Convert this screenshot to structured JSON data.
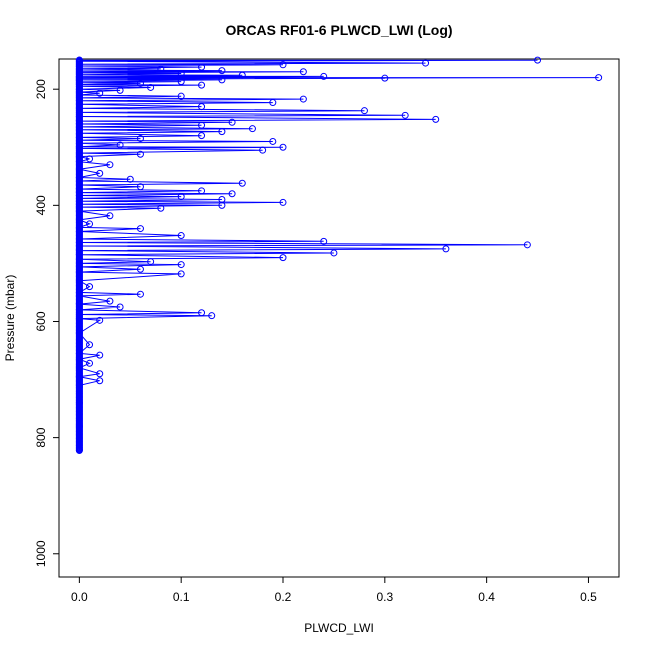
{
  "chart_data": {
    "type": "scatter",
    "title": "ORCAS RF01-6 PLWCD_LWI (Log)",
    "xlabel": "PLWCD_LWI",
    "ylabel": "Pressure (mbar)",
    "xlim": [
      -0.02,
      0.53
    ],
    "ylim": [
      1040,
      148
    ],
    "y_reversed": true,
    "x_ticks": [
      0.0,
      0.1,
      0.2,
      0.3,
      0.4,
      0.5
    ],
    "x_tick_labels": [
      "0.0",
      "0.1",
      "0.2",
      "0.3",
      "0.4",
      "0.5"
    ],
    "y_ticks": [
      200,
      400,
      600,
      800,
      1000
    ],
    "y_tick_labels": [
      "200",
      "400",
      "600",
      "800",
      "1000"
    ],
    "grid": false,
    "legend": "none",
    "color": "#0000ff",
    "marker": "open-circle",
    "series_mode": "lines+markers",
    "zero_band": {
      "x": 0.0,
      "y_from": 150,
      "y_to": 822
    },
    "points": [
      [
        0.0,
        150
      ],
      [
        0.45,
        150
      ],
      [
        0.0,
        152
      ],
      [
        0.34,
        155
      ],
      [
        0.0,
        157
      ],
      [
        0.2,
        158
      ],
      [
        0.0,
        160
      ],
      [
        0.12,
        162
      ],
      [
        0.0,
        164
      ],
      [
        0.08,
        165
      ],
      [
        0.0,
        167
      ],
      [
        0.14,
        168
      ],
      [
        0.0,
        170
      ],
      [
        0.22,
        170
      ],
      [
        0.0,
        172
      ],
      [
        0.1,
        173
      ],
      [
        0.0,
        175
      ],
      [
        0.16,
        176
      ],
      [
        0.0,
        178
      ],
      [
        0.24,
        178
      ],
      [
        0.0,
        180
      ],
      [
        0.51,
        180
      ],
      [
        0.0,
        182
      ],
      [
        0.3,
        181
      ],
      [
        0.0,
        183
      ],
      [
        0.14,
        184
      ],
      [
        0.0,
        186
      ],
      [
        0.1,
        187
      ],
      [
        0.0,
        189
      ],
      [
        0.06,
        190
      ],
      [
        0.0,
        192
      ],
      [
        0.12,
        193
      ],
      [
        0.0,
        195
      ],
      [
        0.07,
        197
      ],
      [
        0.0,
        200
      ],
      [
        0.04,
        202
      ],
      [
        0.0,
        205
      ],
      [
        0.02,
        207
      ],
      [
        0.0,
        210
      ],
      [
        0.1,
        212
      ],
      [
        0.0,
        215
      ],
      [
        0.22,
        217
      ],
      [
        0.0,
        220
      ],
      [
        0.19,
        223
      ],
      [
        0.0,
        226
      ],
      [
        0.12,
        230
      ],
      [
        0.0,
        233
      ],
      [
        0.28,
        237
      ],
      [
        0.0,
        240
      ],
      [
        0.32,
        245
      ],
      [
        0.0,
        247
      ],
      [
        0.35,
        252
      ],
      [
        0.0,
        255
      ],
      [
        0.15,
        257
      ],
      [
        0.0,
        260
      ],
      [
        0.12,
        262
      ],
      [
        0.0,
        265
      ],
      [
        0.17,
        268
      ],
      [
        0.0,
        270
      ],
      [
        0.14,
        273
      ],
      [
        0.0,
        276
      ],
      [
        0.12,
        280
      ],
      [
        0.0,
        283
      ],
      [
        0.06,
        285
      ],
      [
        0.0,
        288
      ],
      [
        0.19,
        290
      ],
      [
        0.0,
        293
      ],
      [
        0.04,
        296
      ],
      [
        0.0,
        299
      ],
      [
        0.2,
        300
      ],
      [
        0.0,
        302
      ],
      [
        0.18,
        305
      ],
      [
        0.0,
        310
      ],
      [
        0.06,
        312
      ],
      [
        0.0,
        316
      ],
      [
        0.01,
        320
      ],
      [
        0.0,
        325
      ],
      [
        0.03,
        330
      ],
      [
        0.0,
        338
      ],
      [
        0.02,
        345
      ],
      [
        0.0,
        352
      ],
      [
        0.05,
        355
      ],
      [
        0.0,
        358
      ],
      [
        0.16,
        362
      ],
      [
        0.0,
        365
      ],
      [
        0.06,
        368
      ],
      [
        0.0,
        372
      ],
      [
        0.12,
        375
      ],
      [
        0.0,
        378
      ],
      [
        0.15,
        380
      ],
      [
        0.0,
        383
      ],
      [
        0.1,
        385
      ],
      [
        0.0,
        388
      ],
      [
        0.14,
        390
      ],
      [
        0.0,
        393
      ],
      [
        0.2,
        395
      ],
      [
        0.0,
        398
      ],
      [
        0.14,
        400
      ],
      [
        0.0,
        403
      ],
      [
        0.08,
        405
      ],
      [
        0.0,
        410
      ],
      [
        0.03,
        418
      ],
      [
        0.0,
        425
      ],
      [
        0.01,
        432
      ],
      [
        0.0,
        438
      ],
      [
        0.06,
        440
      ],
      [
        0.0,
        445
      ],
      [
        0.1,
        452
      ],
      [
        0.0,
        458
      ],
      [
        0.24,
        462
      ],
      [
        0.0,
        464
      ],
      [
        0.44,
        468
      ],
      [
        0.0,
        470
      ],
      [
        0.36,
        475
      ],
      [
        0.0,
        478
      ],
      [
        0.25,
        482
      ],
      [
        0.0,
        485
      ],
      [
        0.2,
        490
      ],
      [
        0.0,
        493
      ],
      [
        0.07,
        497
      ],
      [
        0.0,
        500
      ],
      [
        0.1,
        502
      ],
      [
        0.0,
        506
      ],
      [
        0.06,
        510
      ],
      [
        0.0,
        515
      ],
      [
        0.1,
        518
      ],
      [
        0.0,
        530
      ],
      [
        0.01,
        540
      ],
      [
        0.0,
        550
      ],
      [
        0.06,
        553
      ],
      [
        0.0,
        556
      ],
      [
        0.03,
        565
      ],
      [
        0.0,
        570
      ],
      [
        0.04,
        575
      ],
      [
        0.0,
        580
      ],
      [
        0.12,
        585
      ],
      [
        0.0,
        588
      ],
      [
        0.13,
        590
      ],
      [
        0.0,
        595
      ],
      [
        0.02,
        598
      ],
      [
        0.0,
        620
      ],
      [
        0.01,
        640
      ],
      [
        0.0,
        655
      ],
      [
        0.02,
        658
      ],
      [
        0.0,
        665
      ],
      [
        0.01,
        672
      ],
      [
        0.0,
        680
      ],
      [
        0.02,
        690
      ],
      [
        0.0,
        695
      ],
      [
        0.02,
        702
      ],
      [
        0.0,
        710
      ],
      [
        0.0,
        740
      ],
      [
        0.0,
        780
      ],
      [
        0.0,
        822
      ]
    ]
  }
}
